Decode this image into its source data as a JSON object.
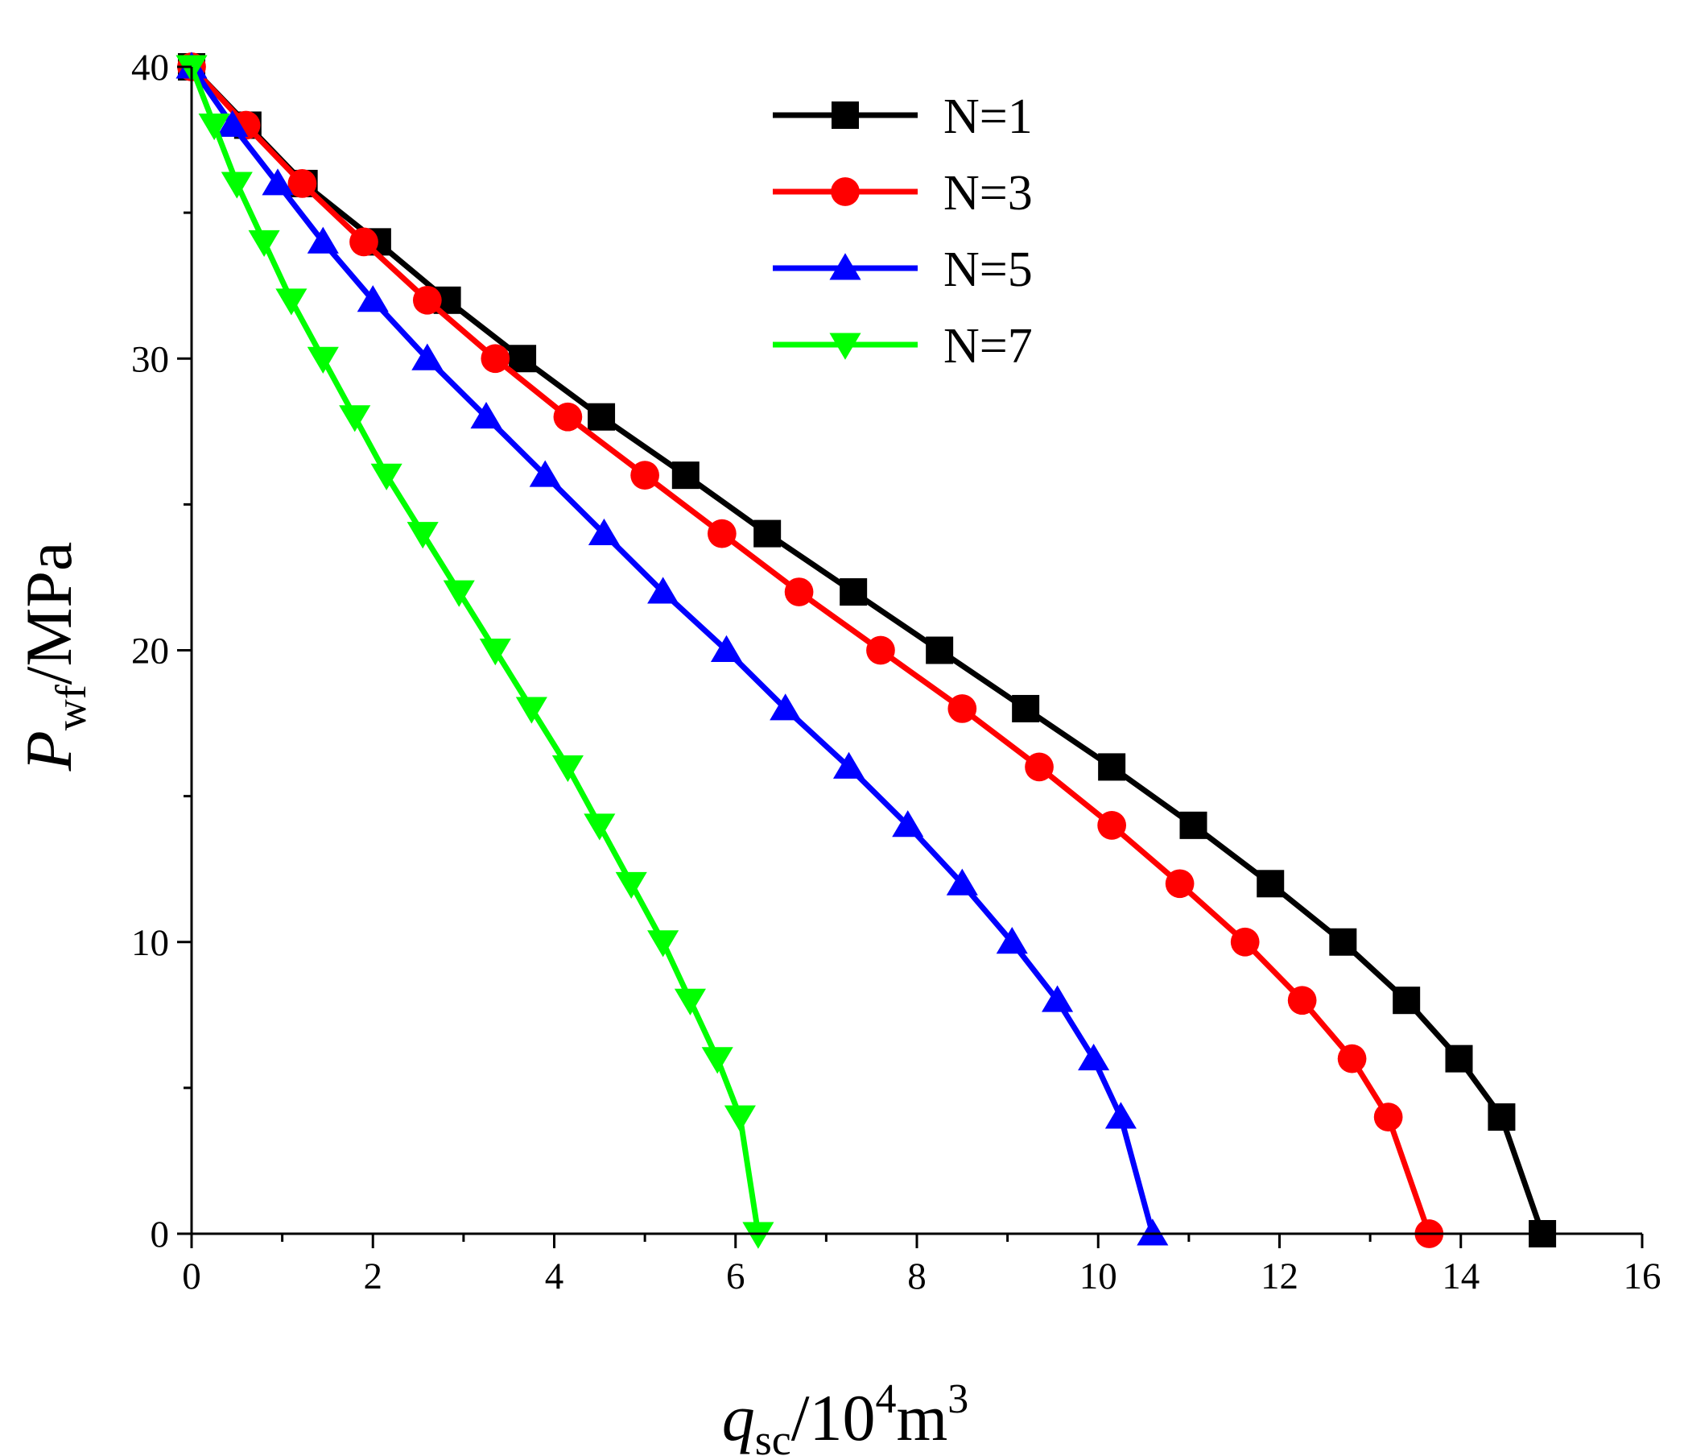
{
  "chart_data": {
    "type": "line",
    "title": "",
    "xlabel": {
      "main": "q",
      "sub": "sc",
      "rest1": "/10",
      "sup1": "4",
      "rest2": "m",
      "sup2": "3"
    },
    "ylabel": {
      "main": "P",
      "sub": "wf",
      "rest": "/MPa"
    },
    "xlim": [
      0,
      16
    ],
    "ylim": [
      0,
      40
    ],
    "xticks": [
      0,
      2,
      4,
      6,
      8,
      10,
      12,
      14,
      16
    ],
    "yticks": [
      0,
      10,
      20,
      30,
      40
    ],
    "legend_position": "top-center",
    "series": [
      {
        "name": "N=1",
        "color": "#000000",
        "marker": "square",
        "x": [
          0,
          0.62,
          1.24,
          2.05,
          2.82,
          3.65,
          4.52,
          5.45,
          6.35,
          7.3,
          8.25,
          9.2,
          10.15,
          11.05,
          11.9,
          12.7,
          13.4,
          13.98,
          14.45,
          14.9
        ],
        "y": [
          40,
          38,
          36,
          34,
          32,
          30,
          28,
          26,
          24,
          22,
          20,
          18,
          16,
          14,
          12,
          10,
          8,
          6,
          4,
          0
        ]
      },
      {
        "name": "N=3",
        "color": "#ff0000",
        "marker": "circle",
        "x": [
          0,
          0.6,
          1.22,
          1.9,
          2.6,
          3.35,
          4.15,
          5.0,
          5.85,
          6.7,
          7.6,
          8.5,
          9.35,
          10.15,
          10.9,
          11.62,
          12.25,
          12.8,
          13.2,
          13.65
        ],
        "y": [
          40,
          38,
          36,
          34,
          32,
          30,
          28,
          26,
          24,
          22,
          20,
          18,
          16,
          14,
          12,
          10,
          8,
          6,
          4,
          0
        ]
      },
      {
        "name": "N=5",
        "color": "#0000ff",
        "marker": "triangle-up",
        "x": [
          0,
          0.45,
          0.95,
          1.45,
          2.0,
          2.6,
          3.25,
          3.9,
          4.55,
          5.2,
          5.9,
          6.55,
          7.25,
          7.9,
          8.5,
          9.05,
          9.55,
          9.95,
          10.25,
          10.6
        ],
        "y": [
          40,
          38,
          36,
          34,
          32,
          30,
          28,
          26,
          24,
          22,
          20,
          18,
          16,
          14,
          12,
          10,
          8,
          6,
          4,
          0
        ]
      },
      {
        "name": "N=7",
        "color": "#00ff00",
        "marker": "triangle-down",
        "x": [
          0,
          0.25,
          0.5,
          0.8,
          1.1,
          1.45,
          1.8,
          2.15,
          2.55,
          2.95,
          3.35,
          3.75,
          4.15,
          4.5,
          4.85,
          5.2,
          5.5,
          5.8,
          6.05,
          6.25
        ],
        "y": [
          40,
          38,
          36,
          34,
          32,
          30,
          28,
          26,
          24,
          22,
          20,
          18,
          16,
          14,
          12,
          10,
          8,
          6,
          4,
          0
        ]
      }
    ]
  }
}
